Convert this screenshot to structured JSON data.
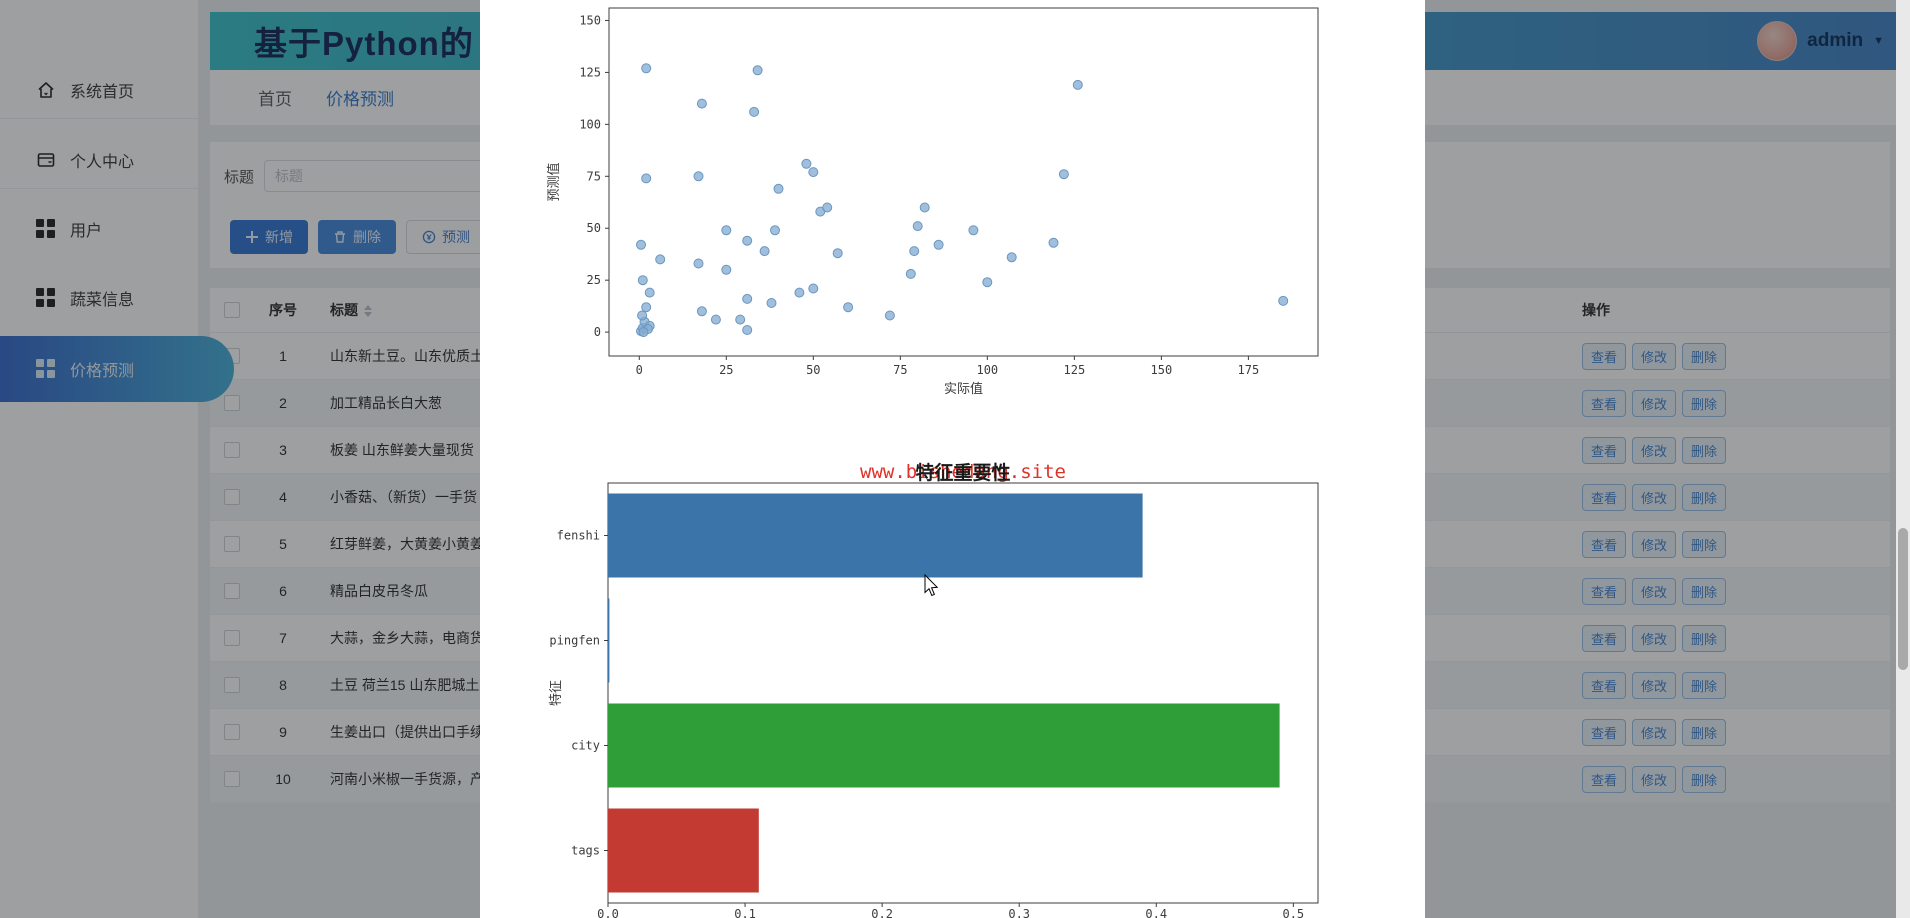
{
  "app": {
    "title": "基于Python的",
    "admin": "admin"
  },
  "sidebar": {
    "items": [
      {
        "label": "系统首页",
        "icon": "home-icon",
        "active": false,
        "line": true
      },
      {
        "label": "个人中心",
        "icon": "id-card-icon",
        "active": false,
        "line": true
      },
      {
        "label": "用户",
        "icon": "grid-icon",
        "active": false,
        "line": false
      },
      {
        "label": "蔬菜信息",
        "icon": "grid-icon",
        "active": false,
        "line": false
      },
      {
        "label": "价格预测",
        "icon": "grid-icon",
        "active": true,
        "line": false
      }
    ]
  },
  "tabs": [
    {
      "label": "首页",
      "active": false
    },
    {
      "label": "价格预测",
      "active": true
    }
  ],
  "search": {
    "label": "标题",
    "placeholder": "标题",
    "value": ""
  },
  "toolbar": {
    "add": "新增",
    "delete": "删除",
    "predict": "预测"
  },
  "table": {
    "headers": {
      "index": "序号",
      "title": "标题",
      "ops": "操作"
    },
    "row_actions": [
      "查看",
      "修改",
      "删除"
    ],
    "rows": [
      {
        "index": 1,
        "title": "山东新土豆。山东优质土"
      },
      {
        "index": 2,
        "title": "加工精品长白大葱"
      },
      {
        "index": 3,
        "title": "板姜 山东鲜姜大量现货"
      },
      {
        "index": 4,
        "title": "小香菇、（新货）一手货"
      },
      {
        "index": 5,
        "title": "红芽鲜姜，大黄姜小黄姜"
      },
      {
        "index": 6,
        "title": "精品白皮吊冬瓜"
      },
      {
        "index": 7,
        "title": "大蒜，金乡大蒜，电商货"
      },
      {
        "index": 8,
        "title": "土豆 荷兰15 山东肥城土"
      },
      {
        "index": 9,
        "title": "生姜出口（提供出口手续"
      },
      {
        "index": 10,
        "title": "河南小米椒一手货源，产"
      }
    ]
  },
  "watermark": {
    "text": "www.bishedang.site",
    "color": "#e03228"
  },
  "chart_data": [
    {
      "type": "scatter",
      "title": "",
      "xlabel": "实际值",
      "ylabel": "预测值",
      "xticks": [
        0,
        25,
        50,
        75,
        100,
        125,
        150,
        175
      ],
      "yticks": [
        0,
        25,
        50,
        75,
        100,
        125,
        150
      ],
      "xlim": [
        -8.7,
        195
      ],
      "ylim": [
        -11.5,
        156
      ],
      "point_color": "#85add2",
      "point_edge": "#6a96bf",
      "points": [
        [
          2,
          127
        ],
        [
          34,
          126
        ],
        [
          18,
          110
        ],
        [
          33,
          106
        ],
        [
          126,
          119
        ],
        [
          122,
          76
        ],
        [
          2,
          74
        ],
        [
          17,
          75
        ],
        [
          48,
          81
        ],
        [
          50,
          77
        ],
        [
          40,
          69
        ],
        [
          52,
          58
        ],
        [
          54,
          60
        ],
        [
          82,
          60
        ],
        [
          80,
          51
        ],
        [
          96,
          49
        ],
        [
          86,
          42
        ],
        [
          119,
          43
        ],
        [
          79,
          39
        ],
        [
          107,
          36
        ],
        [
          100,
          24
        ],
        [
          78,
          28
        ],
        [
          185,
          15
        ],
        [
          25,
          49
        ],
        [
          31,
          44
        ],
        [
          39,
          49
        ],
        [
          0.5,
          42
        ],
        [
          6,
          35
        ],
        [
          17,
          33
        ],
        [
          25,
          30
        ],
        [
          36,
          39
        ],
        [
          57,
          38
        ],
        [
          1,
          25
        ],
        [
          3,
          19
        ],
        [
          18,
          10
        ],
        [
          22,
          6
        ],
        [
          29,
          6
        ],
        [
          31,
          16
        ],
        [
          38,
          14
        ],
        [
          46,
          19
        ],
        [
          50,
          21
        ],
        [
          31,
          1
        ],
        [
          60,
          12
        ],
        [
          72,
          8
        ],
        [
          0.5,
          0.5
        ],
        [
          1,
          2
        ],
        [
          1.5,
          5
        ],
        [
          0.8,
          8
        ],
        [
          2,
          12
        ],
        [
          3,
          3
        ],
        [
          2.5,
          1.5
        ],
        [
          1.2,
          0
        ]
      ]
    },
    {
      "type": "bar",
      "orientation": "horizontal",
      "title": "特征重要性",
      "xlabel": "",
      "ylabel": "特征",
      "categories": [
        "fenshi",
        "pingfen",
        "city",
        "tags"
      ],
      "values": [
        0.39,
        0.001,
        0.49,
        0.11
      ],
      "colors": [
        "#3b74a8",
        "#3b74a8",
        "#2f9e38",
        "#c23a31"
      ],
      "xticks": [
        0.0,
        0.1,
        0.2,
        0.3,
        0.4,
        0.5
      ],
      "xlim": [
        0,
        0.518
      ]
    }
  ]
}
